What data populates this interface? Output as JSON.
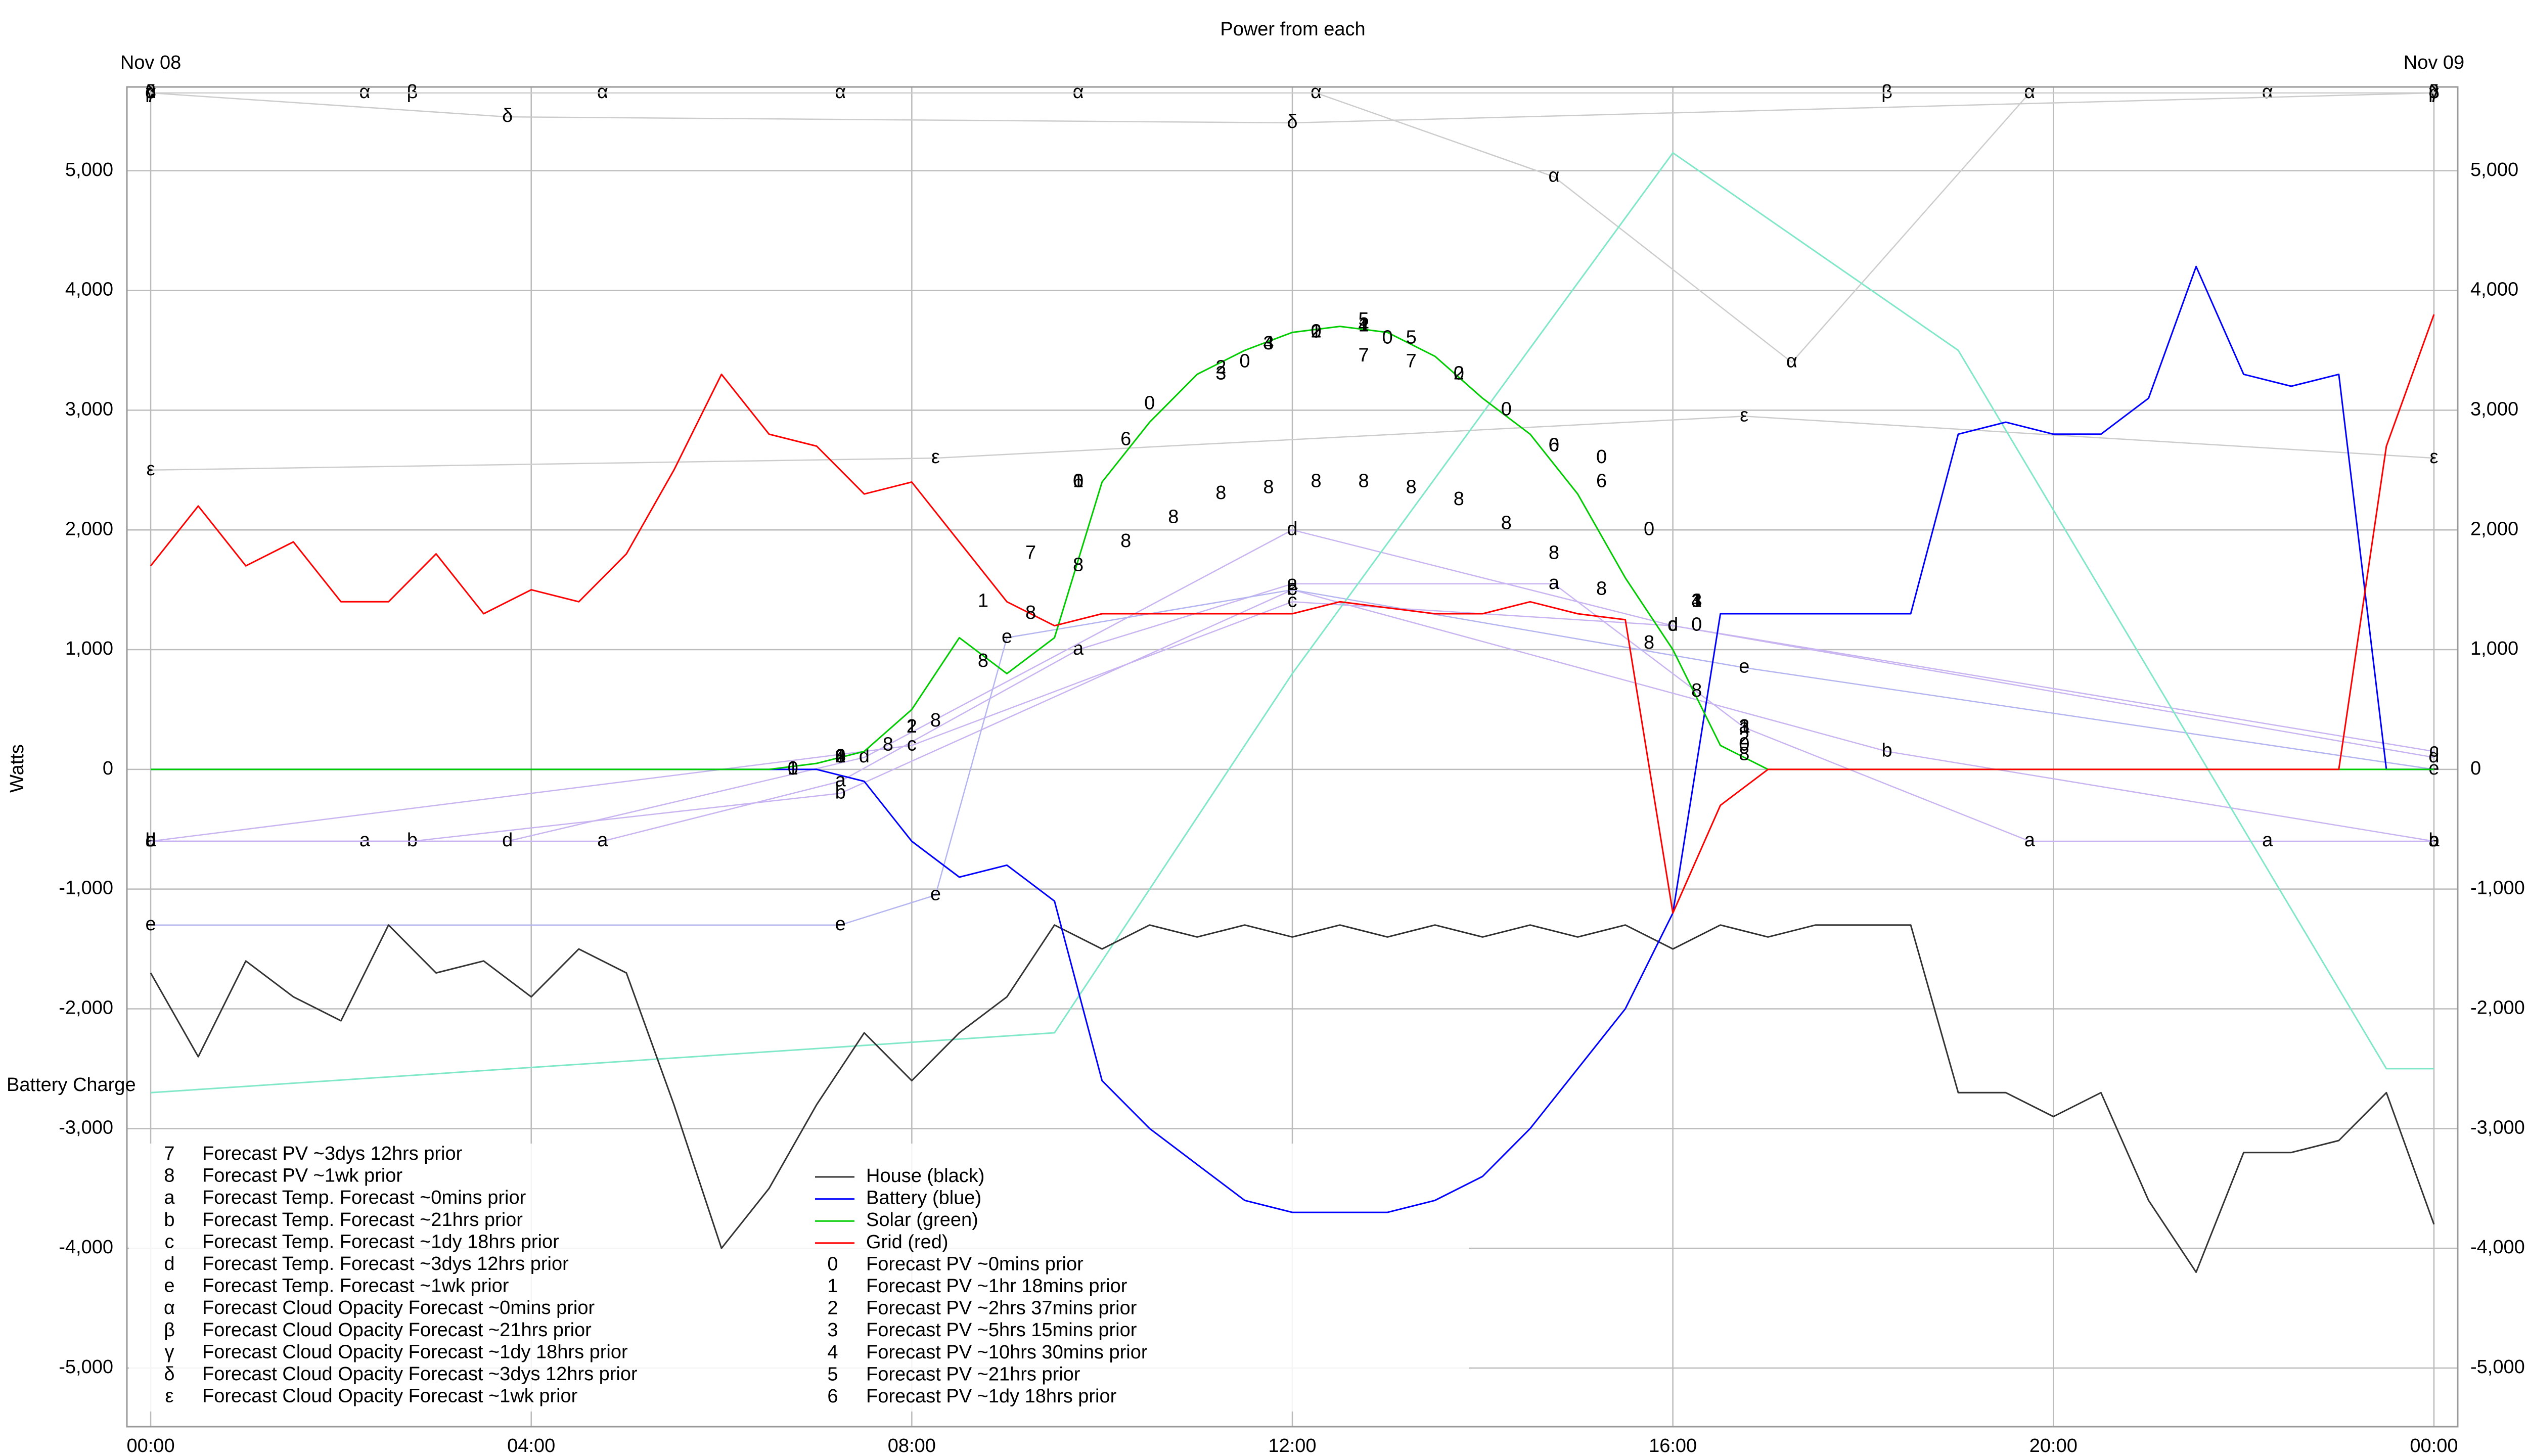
{
  "chart_data": {
    "type": "line",
    "title": "Power from each",
    "ylabel": "Watts",
    "date_labels": [
      {
        "x": 0,
        "label": "Nov 08"
      },
      {
        "x": 24,
        "label": "Nov 09"
      }
    ],
    "xlim": [
      -0.25,
      24.25
    ],
    "ylim": [
      -5490,
      5700
    ],
    "xticks": [
      {
        "value": 0,
        "label": "00:00"
      },
      {
        "value": 4,
        "label": "04:00"
      },
      {
        "value": 8,
        "label": "08:00"
      },
      {
        "value": 12,
        "label": "12:00"
      },
      {
        "value": 16,
        "label": "16:00"
      },
      {
        "value": 20,
        "label": "20:00"
      },
      {
        "value": 24,
        "label": "00:00"
      }
    ],
    "yticks": [
      {
        "value": -5000,
        "label": "-5,000"
      },
      {
        "value": -4000,
        "label": "-4,000"
      },
      {
        "value": -3000,
        "label": "-3,000"
      },
      {
        "value": -2000,
        "label": "-2,000"
      },
      {
        "value": -1000,
        "label": "-1,000"
      },
      0,
      {
        "value": 1000,
        "label": "1,000"
      },
      {
        "value": 2000,
        "label": "2,000"
      },
      {
        "value": 3000,
        "label": "3,000"
      },
      {
        "value": 4000,
        "label": "4,000"
      },
      {
        "value": 5000,
        "label": "5,000"
      }
    ],
    "grid": true,
    "x": [
      0,
      0.5,
      1,
      1.5,
      2,
      2.5,
      3,
      3.5,
      4,
      4.5,
      5,
      5.5,
      6,
      6.5,
      7,
      7.5,
      8,
      8.5,
      9,
      9.5,
      10,
      10.5,
      11,
      11.5,
      12,
      12.5,
      13,
      13.5,
      14,
      14.5,
      15,
      15.5,
      16,
      16.5,
      17,
      17.5,
      18,
      18.5,
      19,
      19.5,
      20,
      20.5,
      21,
      21.5,
      22,
      22.5,
      23,
      23.5,
      24
    ],
    "series": [
      {
        "name": "House (black)",
        "color": "#333333",
        "values": [
          -1700,
          -2400,
          -1600,
          -1900,
          -2100,
          -1300,
          -1700,
          -1600,
          -1900,
          -1500,
          -1700,
          -2800,
          -4000,
          -3500,
          -2800,
          -2200,
          -2600,
          -2200,
          -1900,
          -1300,
          -1500,
          -1300,
          -1400,
          -1300,
          -1400,
          -1300,
          -1400,
          -1300,
          -1400,
          -1300,
          -1400,
          -1300,
          -1500,
          -1300,
          -1400,
          -1300,
          -1300,
          -1300,
          -2700,
          -2700,
          -2900,
          -2700,
          -3600,
          -4200,
          -3200,
          -3200,
          -3100,
          -2700,
          -3800
        ]
      },
      {
        "name": "Battery (blue)",
        "color": "#0000ff",
        "values": [
          0,
          0,
          0,
          0,
          0,
          0,
          0,
          0,
          0,
          0,
          0,
          0,
          0,
          0,
          0,
          -100,
          -600,
          -900,
          -800,
          -1100,
          -2600,
          -3000,
          -3300,
          -3600,
          -3700,
          -3700,
          -3700,
          -3600,
          -3400,
          -3000,
          -2500,
          -2000,
          -1200,
          1300,
          1300,
          1300,
          1300,
          1300,
          2800,
          2900,
          2800,
          2800,
          3100,
          4200,
          3300,
          3200,
          3300,
          0,
          0
        ]
      },
      {
        "name": "Solar (green)",
        "color": "#00cc00",
        "values": [
          0,
          0,
          0,
          0,
          0,
          0,
          0,
          0,
          0,
          0,
          0,
          0,
          0,
          0,
          50,
          150,
          500,
          1100,
          800,
          1100,
          2400,
          2900,
          3300,
          3500,
          3650,
          3700,
          3650,
          3450,
          3100,
          2800,
          2300,
          1600,
          1000,
          200,
          0,
          0,
          0,
          0,
          0,
          0,
          0,
          0,
          0,
          0,
          0,
          0,
          0,
          0,
          0
        ]
      },
      {
        "name": "Grid (red)",
        "color": "#ff0000",
        "values": [
          1700,
          2200,
          1700,
          1900,
          1400,
          1400,
          1800,
          1300,
          1500,
          1400,
          1800,
          2500,
          3300,
          2800,
          2700,
          2300,
          2400,
          1900,
          1400,
          1200,
          1300,
          1300,
          1300,
          1300,
          1300,
          1400,
          1350,
          1300,
          1300,
          1400,
          1300,
          1250,
          -1200,
          -300,
          0,
          0,
          0,
          0,
          0,
          0,
          0,
          0,
          0,
          0,
          0,
          0,
          0,
          2700,
          3800
        ]
      }
    ],
    "pv_forecasts": [
      {
        "symbol": "0",
        "name": "Forecast PV ~0mins prior",
        "x": [
          6.75,
          7.25,
          9.75,
          10.5,
          11.5,
          12.25,
          13,
          13.75,
          14.25,
          14.75,
          15.25,
          15.75,
          16.25,
          16.75
        ],
        "values": [
          0,
          100,
          2400,
          3050,
          3400,
          3650,
          3600,
          3300,
          3000,
          2700,
          2600,
          2000,
          1200,
          200
        ]
      },
      {
        "symbol": "1",
        "name": "Forecast PV ~1hr 18mins prior",
        "x": [
          6.75,
          7.25,
          8,
          8.75,
          9.75,
          12.25,
          12.75,
          16.25,
          16.75
        ],
        "values": [
          0,
          100,
          350,
          1400,
          2400,
          3650,
          3700,
          1400,
          350
        ]
      },
      {
        "symbol": "2",
        "name": "Forecast PV ~2hrs 37mins prior",
        "x": [
          7.25,
          8,
          11.25,
          12.25,
          13.75,
          16.75
        ],
        "values": [
          100,
          350,
          3350,
          3650,
          3300,
          250
        ]
      },
      {
        "symbol": "3",
        "name": "Forecast PV ~5hrs 15mins prior",
        "x": [
          7.25,
          11.25,
          11.75,
          16.25,
          16.75
        ],
        "values": [
          100,
          3300,
          3550,
          1400,
          350
        ]
      },
      {
        "symbol": "4",
        "name": "Forecast PV ~10hrs 30mins prior",
        "x": [
          7.25,
          11.75,
          12.75,
          16.25
        ],
        "values": [
          100,
          3550,
          3700,
          1400
        ]
      },
      {
        "symbol": "5",
        "name": "Forecast PV ~21hrs prior",
        "x": [
          12.75,
          13.25
        ],
        "values": [
          3750,
          3600
        ]
      },
      {
        "symbol": "6",
        "name": "Forecast PV ~1dy 18hrs prior",
        "x": [
          9.75,
          10.25,
          14.75,
          15.25
        ],
        "values": [
          2400,
          2750,
          2700,
          2400
        ]
      },
      {
        "symbol": "7",
        "name": "Forecast PV ~3dys 12hrs prior",
        "x": [
          9.25,
          12.75,
          13.25
        ],
        "values": [
          1800,
          3450,
          3400
        ]
      },
      {
        "symbol": "8",
        "name": "Forecast PV ~1wk prior",
        "x": [
          7.25,
          7.75,
          8.25,
          8.75,
          9.25,
          9.75,
          10.25,
          10.75,
          11.25,
          11.75,
          12.25,
          12.75,
          13.25,
          13.75,
          14.25,
          14.75,
          15.25,
          15.75,
          16.25,
          16.75
        ],
        "values": [
          100,
          200,
          400,
          900,
          1300,
          1700,
          1900,
          2100,
          2300,
          2350,
          2400,
          2400,
          2350,
          2250,
          2050,
          1800,
          1500,
          1050,
          650,
          120
        ]
      }
    ],
    "temp_forecasts": [
      {
        "symbol": "a",
        "name": "Forecast Temp. Forecast ~0mins prior",
        "color": "#c8b4f0",
        "x": [
          0,
          2.25,
          4.75,
          7.25,
          9.75,
          12,
          14.75,
          16.75,
          19.75,
          22.25,
          24
        ],
        "values": [
          -600,
          -600,
          -600,
          -100,
          1000,
          1550,
          1550,
          350,
          -600,
          -600,
          -600
        ]
      },
      {
        "symbol": "b",
        "name": "Forecast Temp. Forecast ~21hrs prior",
        "color": "#c8b4f0",
        "x": [
          0,
          2.75,
          7.25,
          12,
          18.25,
          24
        ],
        "values": [
          -600,
          -600,
          -200,
          1500,
          150,
          -600
        ]
      },
      {
        "symbol": "c",
        "name": "Forecast Temp. Forecast ~1dy 18hrs prior",
        "color": "#c8b4f0",
        "x": [
          0,
          8,
          12,
          16,
          24
        ],
        "values": [
          -600,
          200,
          1400,
          1200,
          150
        ]
      },
      {
        "symbol": "d",
        "name": "Forecast Temp. Forecast ~3dys 12hrs prior",
        "color": "#c8b4f0",
        "x": [
          0,
          3.75,
          7.5,
          12,
          16,
          24
        ],
        "values": [
          -600,
          -600,
          100,
          2000,
          1200,
          100
        ]
      },
      {
        "symbol": "e",
        "name": "Forecast Temp. Forecast ~1wk prior",
        "color": "#b4b4f0",
        "x": [
          0,
          7.25,
          8.25,
          9,
          12,
          16.75,
          24
        ],
        "values": [
          -1300,
          -1300,
          -1050,
          1100,
          1500,
          850,
          0
        ]
      }
    ],
    "cloud_forecasts": [
      {
        "symbol": "α",
        "name": "Forecast Cloud Opacity Forecast ~0mins prior",
        "color": "#cccccc",
        "x": [
          0,
          2.25,
          4.75,
          7.25,
          9.75,
          12.25,
          14.75,
          17.25,
          19.75,
          22.25
        ],
        "values": [
          5650,
          5650,
          5650,
          5650,
          5650,
          5650,
          4950,
          3400,
          5650,
          5650
        ]
      },
      {
        "symbol": "β",
        "name": "Forecast Cloud Opacity Forecast ~21hrs prior",
        "color": "#cccccc",
        "x": [
          0,
          2.75,
          18.25,
          24
        ],
        "values": [
          5650,
          5650,
          5650,
          5650
        ]
      },
      {
        "symbol": "γ",
        "name": "Forecast Cloud Opacity Forecast ~1dy 18hrs prior",
        "color": "#cccccc",
        "x": [
          0,
          24
        ],
        "values": [
          5650,
          5650
        ]
      },
      {
        "symbol": "δ",
        "name": "Forecast Cloud Opacity Forecast ~3dys 12hrs prior",
        "color": "#cccccc",
        "x": [
          0,
          3.75,
          12,
          24
        ],
        "values": [
          5650,
          5450,
          5400,
          5650
        ]
      },
      {
        "symbol": "ε",
        "name": "Forecast Cloud Opacity Forecast ~1wk prior",
        "color": "#cccccc",
        "x": [
          0,
          8.25,
          16.75,
          24
        ],
        "values": [
          2500,
          2600,
          2950,
          2600
        ]
      }
    ],
    "battery_charge": {
      "name": "Battery Charge",
      "color": "#80e8c8",
      "x": [
        0,
        9.5,
        12,
        16,
        19,
        23.5,
        24
      ],
      "values": [
        -2700,
        -2200,
        800,
        5150,
        3500,
        -2500,
        -2500
      ]
    }
  }
}
